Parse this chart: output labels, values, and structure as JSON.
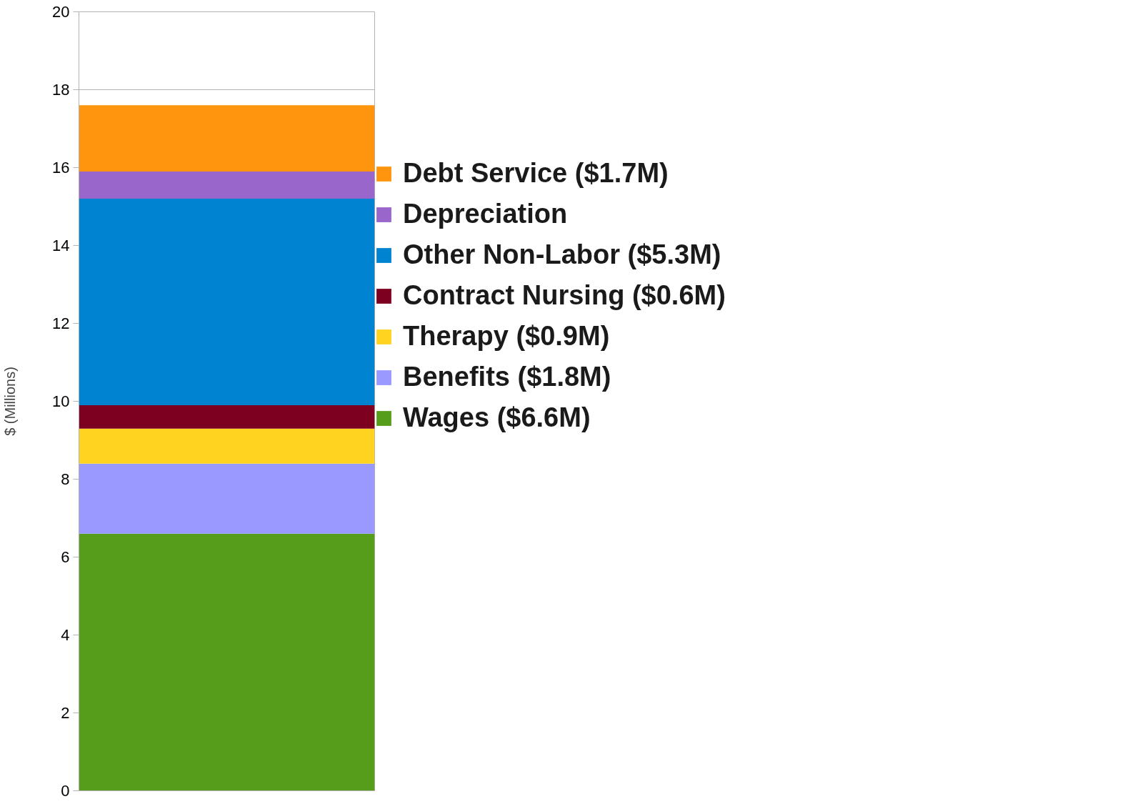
{
  "chart_data": {
    "type": "bar",
    "stacked": true,
    "categories": [
      null
    ],
    "ylabel": "$ (Millions)",
    "ylim": [
      0,
      20
    ],
    "yticks": [
      0,
      2,
      4,
      6,
      8,
      10,
      12,
      14,
      16,
      18,
      20
    ],
    "grid": "y",
    "legend": "right",
    "tick_labels": "y",
    "series": [
      {
        "name": "Wages ($6.6M)",
        "color": "#579d1c",
        "values": [
          6.6
        ]
      },
      {
        "name": "Benefits ($1.8M)",
        "color": "#9999ff",
        "values": [
          1.8
        ]
      },
      {
        "name": "Therapy ($0.9M)",
        "color": "#ffd320",
        "values": [
          0.9
        ]
      },
      {
        "name": "Contract Nursing ($0.6M)",
        "color": "#7e0021",
        "values": [
          0.6
        ]
      },
      {
        "name": "Other Non-Labor ($5.3M)",
        "color": "#0084d1",
        "values": [
          5.3
        ]
      },
      {
        "name": "Depreciation",
        "color": "#9966cc",
        "values": [
          0.7
        ]
      },
      {
        "name": "Debt Service ($1.7M)",
        "color": "#ff950e",
        "values": [
          1.7
        ]
      }
    ]
  }
}
